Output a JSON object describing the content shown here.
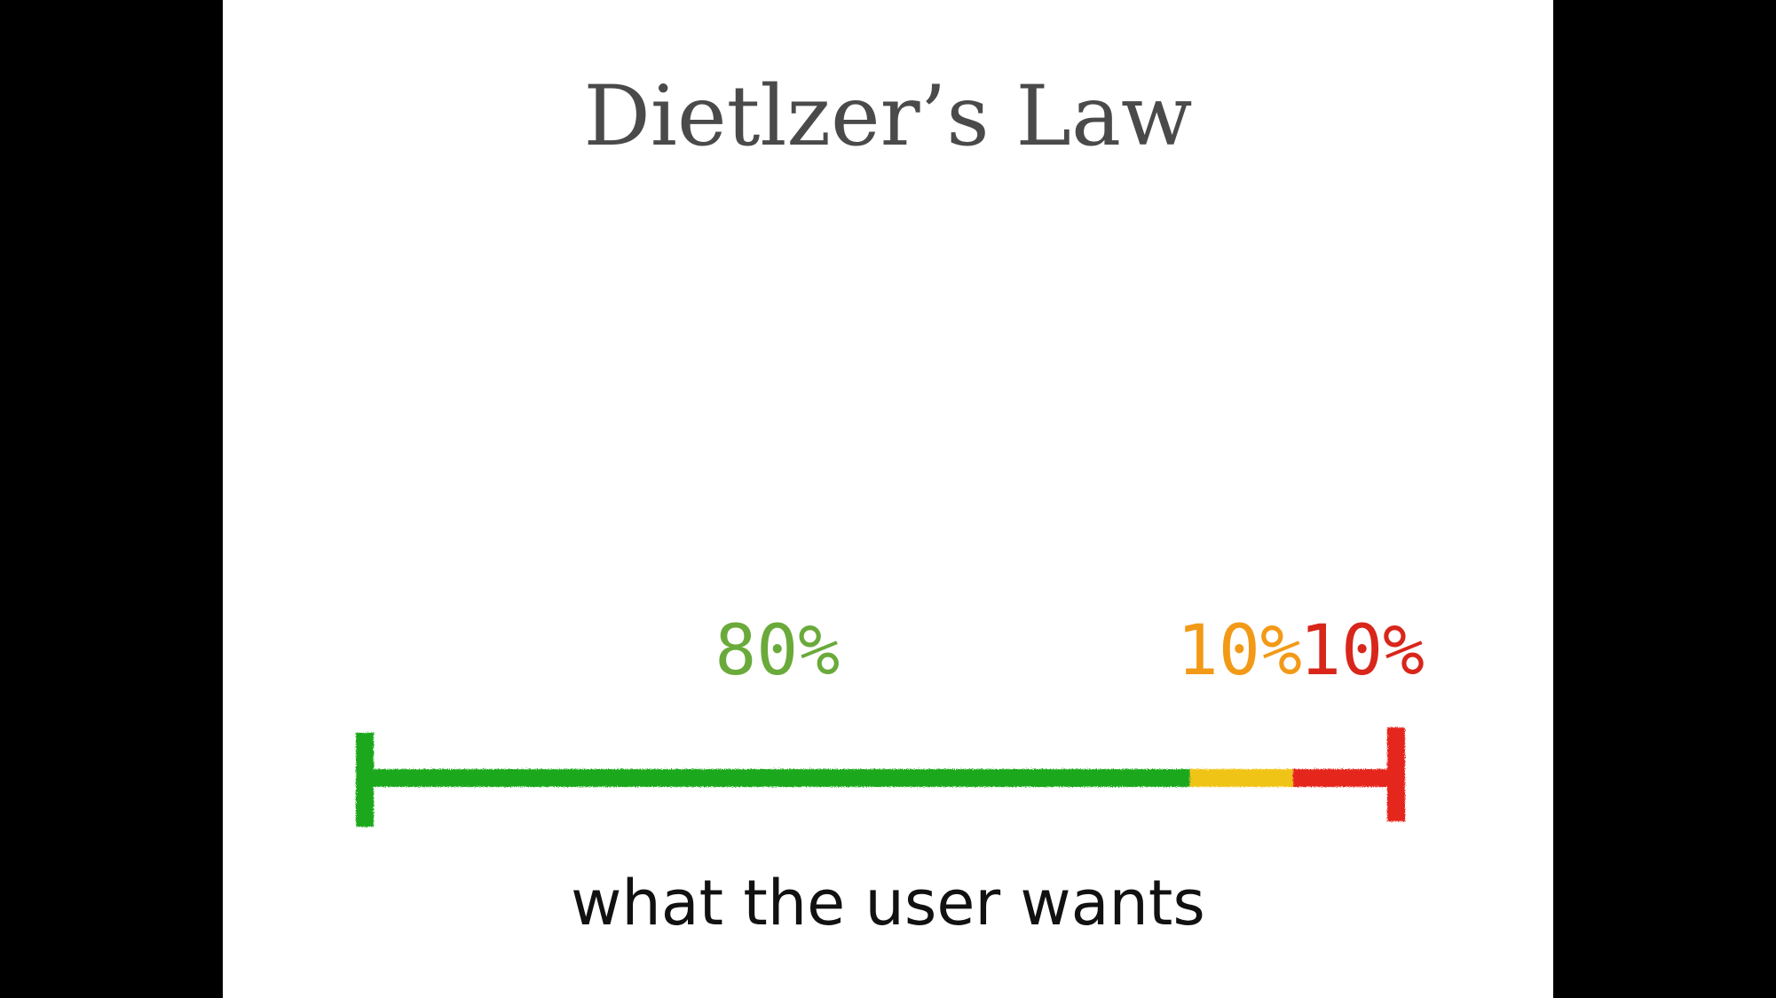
{
  "slide": {
    "title": "Dietlzer’s Law",
    "caption": "what the user wants"
  },
  "chart_data": {
    "type": "bar",
    "orientation": "horizontal-stacked",
    "title": "Dietlzer’s Law",
    "xlabel": "what the user wants",
    "categories": [
      "what the user wants"
    ],
    "series": [
      {
        "label": "80%",
        "value": 80,
        "color": "#1fa81f",
        "label_color": "#6aaa3a"
      },
      {
        "label": "10%",
        "value": 10,
        "color": "#f0c419",
        "label_color": "#f29a17"
      },
      {
        "label": "10%",
        "value": 10,
        "color": "#e5281c",
        "label_color": "#d8261b"
      }
    ],
    "xlim": [
      0,
      100
    ],
    "grid": false,
    "legend": "none"
  }
}
